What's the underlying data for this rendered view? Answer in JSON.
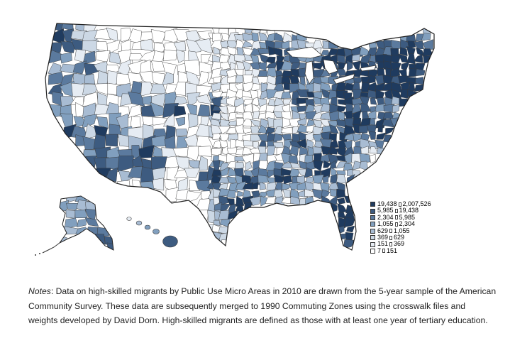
{
  "colors": {
    "c1": "#1f3b5f",
    "c2": "#3d5b80",
    "c3": "#5b7a9e",
    "c4": "#819fbe",
    "c5": "#a8bcd3",
    "c6": "#ccd8e5",
    "c7": "#e6ecf3",
    "c8": "#ffffff",
    "border": "#3a3a3a"
  },
  "legend": {
    "items": [
      {
        "min": "19,438",
        "max": "2,007,526",
        "color_key": "c1"
      },
      {
        "min": "5,985",
        "max": "19,438",
        "color_key": "c2"
      },
      {
        "min": "2,304",
        "max": "5,985",
        "color_key": "c3"
      },
      {
        "min": "1,055",
        "max": "2,304",
        "color_key": "c4"
      },
      {
        "min": "629",
        "max": "1,055",
        "color_key": "c5"
      },
      {
        "min": "369",
        "max": "629",
        "color_key": "c6"
      },
      {
        "min": "151",
        "max": "369",
        "color_key": "c7"
      },
      {
        "min": "7",
        "max": "151",
        "color_key": "c8"
      }
    ]
  },
  "notes": {
    "label": "Notes",
    "text": ": Data on high-skilled migrants by Public Use Micro Areas in 2010 are drawn from the 5-year sample of the American Community Survey. These data are subsequently merged to 1990 Commuting Zones using the crosswalk files and weights developed by David Dorn. High-skilled migrants are defined as those with at least one year of tertiary education."
  }
}
